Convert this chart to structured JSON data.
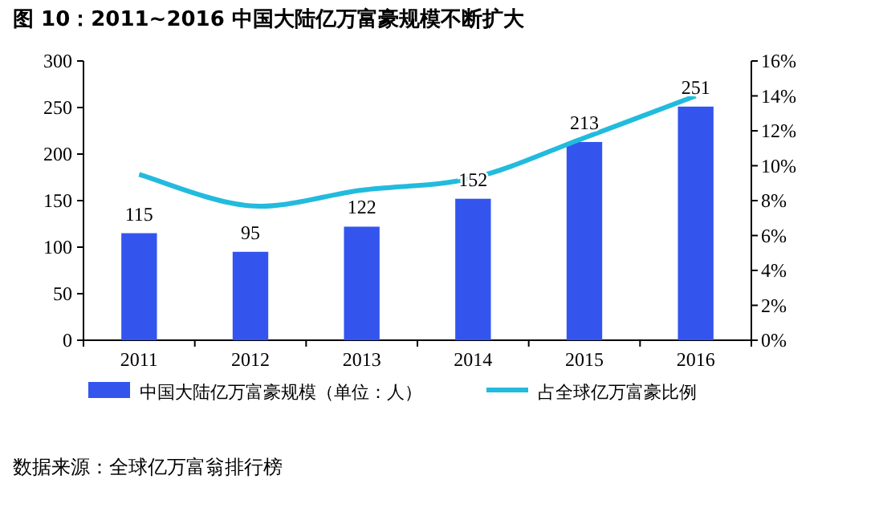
{
  "chart_data": {
    "type": "bar",
    "title": "图 10：2011~2016 中国大陆亿万富豪规模不断扩大",
    "categories": [
      "2011",
      "2012",
      "2013",
      "2014",
      "2015",
      "2016"
    ],
    "series": [
      {
        "name": "中国大陆亿万富豪规模（单位：人）",
        "color": "#3355ee",
        "values": [
          115,
          95,
          122,
          152,
          213,
          251
        ],
        "value_labels": [
          "115",
          "95",
          "122",
          "152",
          "213",
          "251"
        ]
      },
      {
        "name": "占全球亿万富豪比例",
        "type": "line",
        "axis": "y2",
        "color": "#22bbdd",
        "values": [
          9.5,
          7.7,
          8.6,
          9.3,
          11.6,
          14.0
        ]
      }
    ],
    "ylim": [
      0,
      300
    ],
    "yticks": [
      0,
      50,
      100,
      150,
      200,
      250,
      300
    ],
    "y2lim": [
      0,
      16
    ],
    "y2ticks": [
      {
        "value": 0,
        "label": "0%"
      },
      {
        "value": 2,
        "label": "2%"
      },
      {
        "value": 4,
        "label": "4%"
      },
      {
        "value": 6,
        "label": "6%"
      },
      {
        "value": 8,
        "label": "8%"
      },
      {
        "value": 10,
        "label": "10%"
      },
      {
        "value": 12,
        "label": "12%"
      },
      {
        "value": 14,
        "label": "14%"
      },
      {
        "value": 16,
        "label": "16%"
      }
    ],
    "legend": "bottom",
    "grid": false,
    "annotations": [
      "数据来源：全球亿万富翁排行榜"
    ]
  }
}
